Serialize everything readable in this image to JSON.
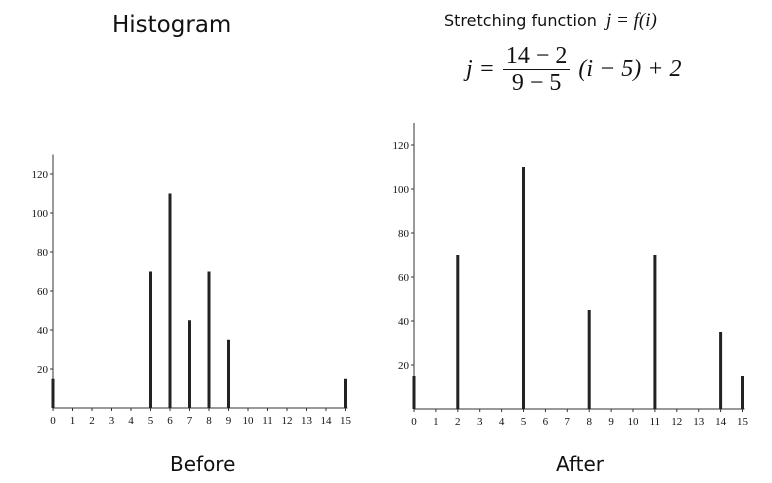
{
  "titles": {
    "left": "Histogram",
    "right": "Stretching function",
    "right_expr": "j = f(i)",
    "formula_lhs": "j =",
    "formula_num": "14 − 2",
    "formula_den": "9 − 5",
    "formula_rest": "(i − 5) + 2"
  },
  "captions": {
    "before": "Before",
    "after": "After"
  },
  "chart_data": [
    {
      "type": "bar",
      "categories": [
        "0",
        "1",
        "2",
        "3",
        "4",
        "5",
        "6",
        "7",
        "8",
        "9",
        "10",
        "11",
        "12",
        "13",
        "14",
        "15"
      ],
      "values": [
        15,
        0,
        0,
        0,
        0,
        70,
        110,
        45,
        70,
        35,
        0,
        0,
        0,
        0,
        0,
        15
      ],
      "yticks": [
        20,
        40,
        60,
        80,
        100,
        120
      ],
      "ylim": [
        0,
        130
      ],
      "xlim": [
        0,
        15
      ],
      "color": "#222222"
    },
    {
      "type": "bar",
      "categories": [
        "0",
        "1",
        "2",
        "3",
        "4",
        "5",
        "6",
        "7",
        "8",
        "9",
        "10",
        "11",
        "12",
        "13",
        "14",
        "15"
      ],
      "values": [
        15,
        0,
        70,
        0,
        0,
        110,
        0,
        0,
        45,
        0,
        0,
        70,
        0,
        0,
        35,
        15
      ],
      "yticks": [
        20,
        40,
        60,
        80,
        100,
        120
      ],
      "ylim": [
        0,
        130
      ],
      "xlim": [
        0,
        15
      ],
      "color": "#222222"
    }
  ]
}
